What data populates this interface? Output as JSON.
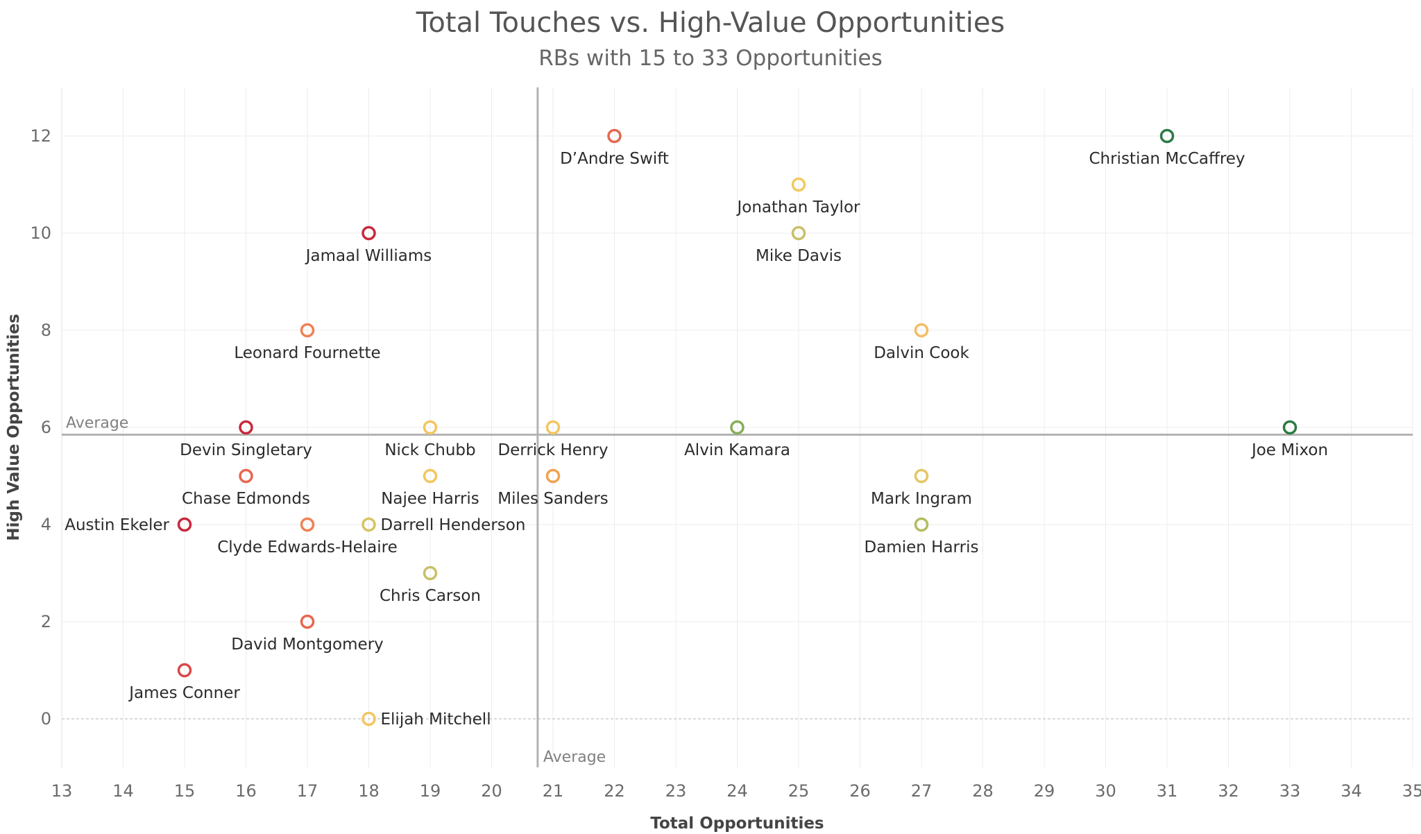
{
  "chart_data": {
    "type": "scatter",
    "title": "Total Touches vs. High-Value Opportunities",
    "subtitle": "RBs with 15 to 33 Opportunities",
    "xlabel": "Total Opportunities",
    "ylabel": "High Value Opportunities",
    "xlim": [
      13,
      35
    ],
    "ylim": [
      -1,
      13
    ],
    "x_ticks": [
      13,
      14,
      15,
      16,
      17,
      18,
      19,
      20,
      21,
      22,
      23,
      24,
      25,
      26,
      27,
      28,
      29,
      30,
      31,
      32,
      33,
      34,
      35
    ],
    "y_ticks": [
      0,
      2,
      4,
      6,
      8,
      10,
      12
    ],
    "grid": true,
    "reference_lines": {
      "x_average": 20.75,
      "y_average": 5.85,
      "x_label": "Average",
      "y_label": "Average"
    },
    "points": [
      {
        "name": "D’Andre Swift",
        "x": 22,
        "y": 12,
        "color": "#e8664f",
        "label_pos": "below"
      },
      {
        "name": "Christian McCaffrey",
        "x": 31,
        "y": 12,
        "color": "#2c7a44",
        "label_pos": "below"
      },
      {
        "name": "Jonathan Taylor",
        "x": 25,
        "y": 11,
        "color": "#f2c95f",
        "label_pos": "below"
      },
      {
        "name": "Jamaal Williams",
        "x": 18,
        "y": 10,
        "color": "#c8283c",
        "label_pos": "below"
      },
      {
        "name": "Mike Davis",
        "x": 25,
        "y": 10,
        "color": "#c8c067",
        "label_pos": "below"
      },
      {
        "name": "Leonard Fournette",
        "x": 17,
        "y": 8,
        "color": "#ef8156",
        "label_pos": "below"
      },
      {
        "name": "Dalvin Cook",
        "x": 27,
        "y": 8,
        "color": "#f4bc65",
        "label_pos": "below"
      },
      {
        "name": "Devin Singletary",
        "x": 16,
        "y": 6,
        "color": "#c8283c",
        "label_pos": "below"
      },
      {
        "name": "Nick Chubb",
        "x": 19,
        "y": 6,
        "color": "#f3c660",
        "label_pos": "below"
      },
      {
        "name": "Derrick Henry",
        "x": 21,
        "y": 6,
        "color": "#f3c660",
        "label_pos": "below"
      },
      {
        "name": "Alvin Kamara",
        "x": 24,
        "y": 6,
        "color": "#86ad58",
        "label_pos": "below"
      },
      {
        "name": "Joe Mixon",
        "x": 33,
        "y": 6,
        "color": "#2c7a44",
        "label_pos": "below"
      },
      {
        "name": "Chase Edmonds",
        "x": 16,
        "y": 5,
        "color": "#e8664f",
        "label_pos": "below"
      },
      {
        "name": "Najee Harris",
        "x": 19,
        "y": 5,
        "color": "#f3c660",
        "label_pos": "below"
      },
      {
        "name": "Miles Sanders",
        "x": 21,
        "y": 5,
        "color": "#f2a24e",
        "label_pos": "below"
      },
      {
        "name": "Mark Ingram",
        "x": 27,
        "y": 5,
        "color": "#e2c764",
        "label_pos": "below"
      },
      {
        "name": "Austin Ekeler",
        "x": 15,
        "y": 4,
        "color": "#c8283c",
        "label_pos": "left"
      },
      {
        "name": "Clyde Edwards-Helaire",
        "x": 17,
        "y": 4,
        "color": "#ef8156",
        "label_pos": "below"
      },
      {
        "name": "Darrell Henderson",
        "x": 18,
        "y": 4,
        "color": "#d6c461",
        "label_pos": "right"
      },
      {
        "name": "Damien Harris",
        "x": 27,
        "y": 4,
        "color": "#b3bc5e",
        "label_pos": "below"
      },
      {
        "name": "Chris Carson",
        "x": 19,
        "y": 3,
        "color": "#c8c067",
        "label_pos": "below"
      },
      {
        "name": "David Montgomery",
        "x": 17,
        "y": 2,
        "color": "#e8664f",
        "label_pos": "below"
      },
      {
        "name": "James Conner",
        "x": 15,
        "y": 1,
        "color": "#d94949",
        "label_pos": "below"
      },
      {
        "name": "Elijah Mitchell",
        "x": 18,
        "y": 0,
        "color": "#f3c660",
        "label_pos": "right"
      }
    ]
  }
}
